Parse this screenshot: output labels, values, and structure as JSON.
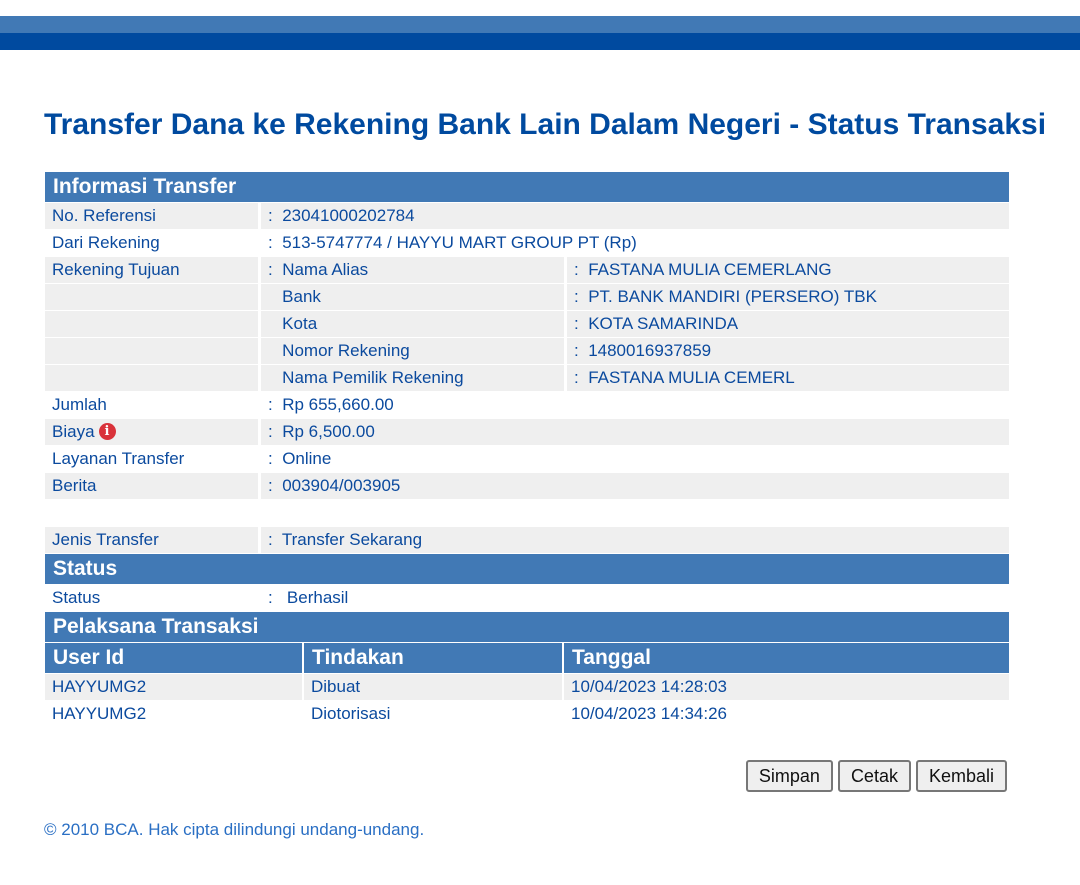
{
  "title": "Transfer Dana ke Rekening Bank Lain Dalam Negeri - Status Transaksi",
  "info": {
    "header": "Informasi Transfer",
    "sep": ":",
    "ref_label": "No. Referensi",
    "ref": "23041000202784",
    "from_label": "Dari Rekening",
    "from": "513-5747774 / HAYYU MART GROUP PT  (Rp)",
    "to_label": "Rekening Tujuan",
    "to": [
      {
        "label": "Nama Alias",
        "value": "FASTANA MULIA CEMERLANG"
      },
      {
        "label": "Bank",
        "value": "PT. BANK MANDIRI (PERSERO) TBK"
      },
      {
        "label": "Kota",
        "value": "KOTA SAMARINDA"
      },
      {
        "label": "Nomor Rekening",
        "value": "1480016937859"
      },
      {
        "label": "Nama Pemilik Rekening",
        "value": "FASTANA MULIA CEMERL"
      }
    ],
    "amount_label": "Jumlah",
    "amount": "Rp 655,660.00",
    "fee_label": "Biaya",
    "fee_icon": "info-icon",
    "fee": "Rp 6,500.00",
    "service_label": "Layanan Transfer",
    "service": "Online",
    "news_label": "Berita",
    "news": "003904/003905",
    "type_label": "Jenis Transfer",
    "type": "Transfer Sekarang"
  },
  "status": {
    "header": "Status",
    "label": "Status",
    "value": "Berhasil"
  },
  "exec": {
    "header": "Pelaksana Transaksi",
    "columns": [
      "User Id",
      "Tindakan",
      "Tanggal"
    ],
    "rows": [
      [
        "HAYYUMG2",
        "Dibuat",
        "10/04/2023 14:28:03"
      ],
      [
        "HAYYUMG2",
        "Diotorisasi",
        "10/04/2023 14:34:26"
      ]
    ]
  },
  "buttons": {
    "save": "Simpan",
    "print": "Cetak",
    "back": "Kembali"
  },
  "footer": "©  2010 BCA. Hak cipta dilindungi undang-undang.",
  "colors": {
    "header_bg": "#4179b5",
    "title": "#004a9f",
    "text": "#0b4a9e"
  }
}
